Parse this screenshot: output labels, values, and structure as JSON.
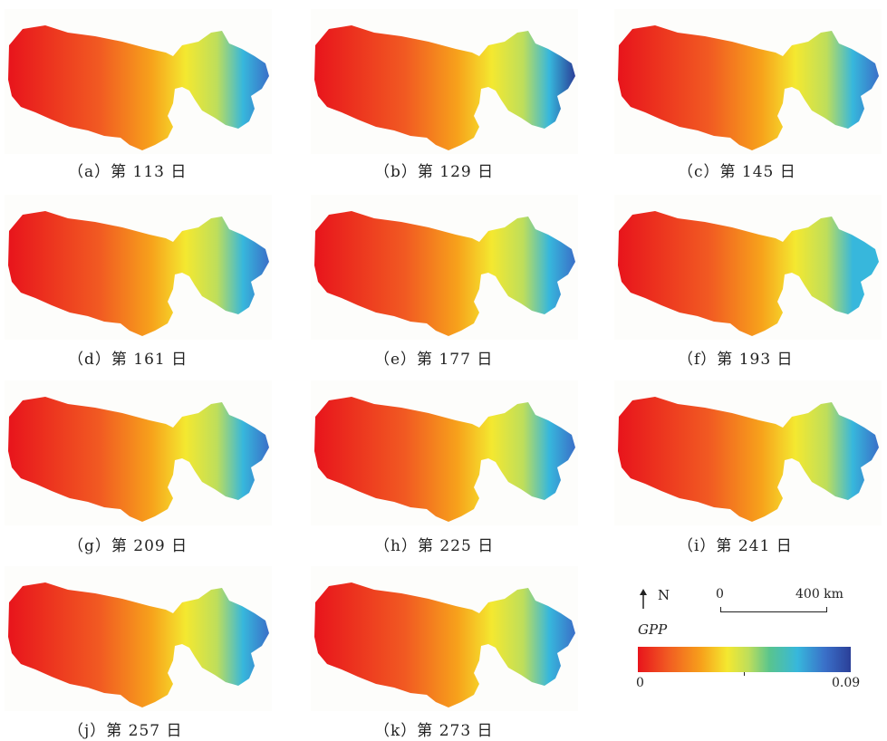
{
  "panels": [
    {
      "id": "a",
      "caption": "（a）第 113 日",
      "east_color": "#3a6fc8"
    },
    {
      "id": "b",
      "caption": "（b）第 129 日",
      "east_color": "#2b3f98"
    },
    {
      "id": "c",
      "caption": "（c）第 145 日",
      "east_color": "#3a6fc8"
    },
    {
      "id": "d",
      "caption": "（d）第 161 日",
      "east_color": "#3a6fc8"
    },
    {
      "id": "e",
      "caption": "（e）第 177 日",
      "east_color": "#3a6fc8"
    },
    {
      "id": "f",
      "caption": "（f）第 193 日",
      "east_color": "#37b7dc"
    },
    {
      "id": "g",
      "caption": "（g）第 209 日",
      "east_color": "#3a6fc8"
    },
    {
      "id": "h",
      "caption": "（h）第 225 日",
      "east_color": "#3a6fc8"
    },
    {
      "id": "i",
      "caption": "（i）第 241 日",
      "east_color": "#3a6fc8"
    },
    {
      "id": "j",
      "caption": "（j）第 257 日",
      "east_color": "#3a6fc8"
    },
    {
      "id": "k",
      "caption": "（k）第 273 日",
      "east_color": "#3a6fc8"
    }
  ],
  "legend": {
    "north_label": "N",
    "scale_min": "0",
    "scale_max": "400 km",
    "variable": "GPP",
    "colorbar_min": "0",
    "colorbar_max": "0.09",
    "colors": [
      "#e8141c",
      "#f15a22",
      "#f7a21b",
      "#f4e830",
      "#bede5b",
      "#58c48f",
      "#37b7dc",
      "#3a6fc8",
      "#2b3f98"
    ]
  }
}
